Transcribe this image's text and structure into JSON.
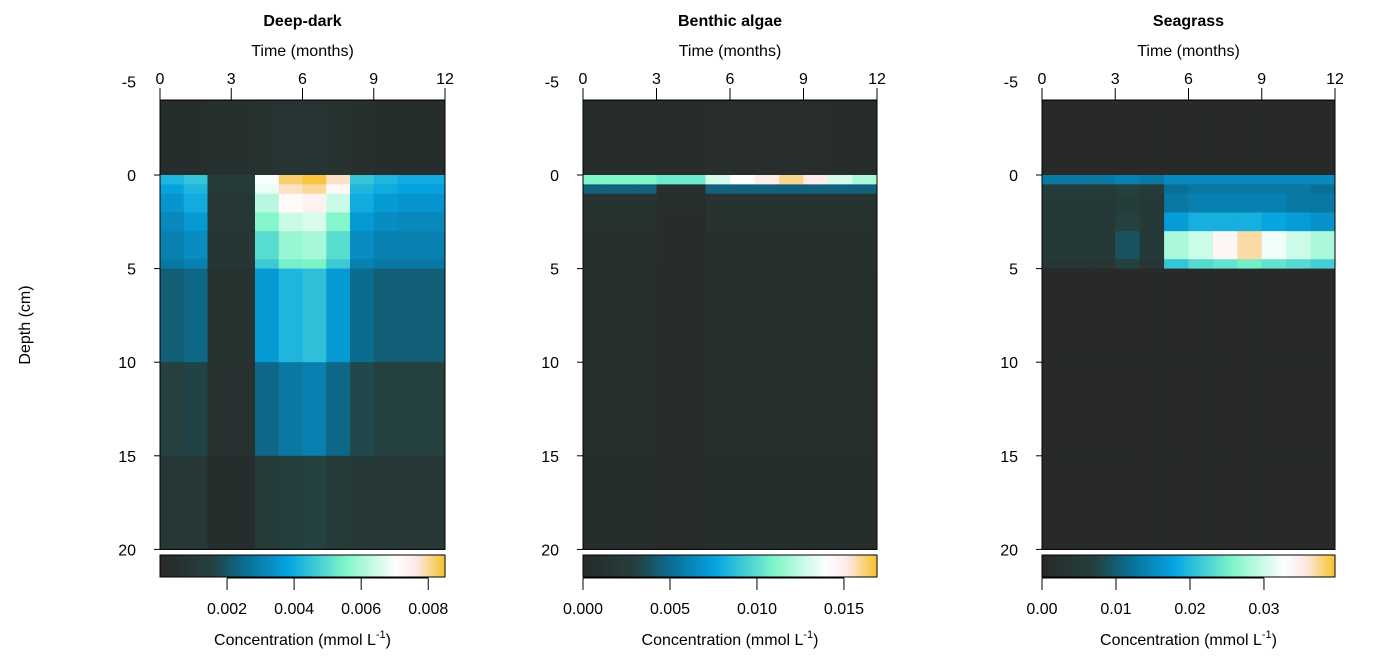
{
  "ylabel": "Depth (cm)",
  "chart_data": [
    {
      "type": "heatmap",
      "title": "Deep-dark",
      "xlabel": "Time (months)",
      "ylabel": "Depth (cm)",
      "xlim": [
        0,
        12
      ],
      "xticks": [
        0,
        3,
        6,
        9,
        12
      ],
      "ylim": [
        20,
        -5
      ],
      "yticks": [
        -5,
        0,
        5,
        10,
        15,
        20
      ],
      "x_edges": [
        0,
        1,
        2,
        3,
        4,
        5,
        6,
        7,
        8,
        9,
        10,
        11,
        12
      ],
      "y_edges": [
        -4,
        0,
        0.5,
        1,
        2,
        3,
        4.5,
        5,
        10,
        15,
        20
      ],
      "values": [
        [
          0.0003,
          0.0003,
          0.0004,
          0.0004,
          0.0006,
          0.0007,
          0.0007,
          0.0006,
          0.0004,
          0.0003,
          0.0003,
          0.0003
        ],
        [
          0.0042,
          0.0045,
          0.0012,
          0.0012,
          0.007,
          0.0082,
          0.0084,
          0.0078,
          0.0045,
          0.0042,
          0.004,
          0.004
        ],
        [
          0.0038,
          0.0042,
          0.0011,
          0.0011,
          0.0068,
          0.0078,
          0.008,
          0.0072,
          0.0042,
          0.004,
          0.0038,
          0.0038
        ],
        [
          0.0035,
          0.004,
          0.001,
          0.001,
          0.0062,
          0.0072,
          0.0074,
          0.0064,
          0.004,
          0.0036,
          0.0035,
          0.0035
        ],
        [
          0.0032,
          0.0036,
          0.0009,
          0.0009,
          0.0056,
          0.0064,
          0.0066,
          0.0056,
          0.0036,
          0.0033,
          0.0032,
          0.0032
        ],
        [
          0.003,
          0.0033,
          0.0008,
          0.0008,
          0.005,
          0.0058,
          0.006,
          0.005,
          0.0033,
          0.003,
          0.003,
          0.003
        ],
        [
          0.0028,
          0.003,
          0.0008,
          0.0008,
          0.0046,
          0.0054,
          0.0055,
          0.0046,
          0.003,
          0.0028,
          0.0028,
          0.0028
        ],
        [
          0.0022,
          0.0024,
          0.0006,
          0.0006,
          0.0036,
          0.0042,
          0.0044,
          0.0036,
          0.0025,
          0.0022,
          0.0022,
          0.0022
        ],
        [
          0.0015,
          0.0016,
          0.0005,
          0.0005,
          0.0024,
          0.0028,
          0.003,
          0.0024,
          0.0017,
          0.0015,
          0.0015,
          0.0015
        ],
        [
          0.0009,
          0.0009,
          0.0003,
          0.0003,
          0.0012,
          0.0014,
          0.0015,
          0.0012,
          0.001,
          0.0009,
          0.0009,
          0.0009
        ]
      ],
      "colorbar": {
        "label": "Concentration (mmol L",
        "label_sup": "-1",
        "label_end": ")",
        "range": [
          0,
          0.0085
        ],
        "ticks": [
          0.002,
          0.004,
          0.006,
          0.008
        ],
        "tick_labels": [
          "0.002",
          "0.004",
          "0.006",
          "0.008"
        ]
      }
    },
    {
      "type": "heatmap",
      "title": "Benthic algae",
      "xlabel": "Time (months)",
      "xlim": [
        0,
        12
      ],
      "xticks": [
        0,
        3,
        6,
        9,
        12
      ],
      "ylim": [
        20,
        -5
      ],
      "yticks": [
        -5,
        0,
        5,
        10,
        15,
        20
      ],
      "x_edges": [
        0,
        1,
        2,
        3,
        4,
        5,
        6,
        7,
        8,
        9,
        10,
        11,
        12
      ],
      "y_edges": [
        -4,
        0,
        0.5,
        1,
        2,
        3,
        4.5,
        5,
        10,
        15,
        20
      ],
      "values": [
        [
          0.0004,
          0.0004,
          0.0004,
          0.0004,
          0.0004,
          0.0005,
          0.0005,
          0.0005,
          0.0005,
          0.0005,
          0.0004,
          0.0004
        ],
        [
          0.011,
          0.011,
          0.011,
          0.0105,
          0.0105,
          0.013,
          0.014,
          0.015,
          0.016,
          0.015,
          0.013,
          0.012
        ],
        [
          0.0045,
          0.0045,
          0.0045,
          0.0008,
          0.0008,
          0.0045,
          0.0045,
          0.0045,
          0.0045,
          0.0045,
          0.0045,
          0.0045
        ],
        [
          0.0012,
          0.0012,
          0.0012,
          0.0005,
          0.0005,
          0.0012,
          0.0012,
          0.0012,
          0.0012,
          0.0012,
          0.0012,
          0.0012
        ],
        [
          0.001,
          0.001,
          0.001,
          0.0004,
          0.0004,
          0.001,
          0.001,
          0.001,
          0.001,
          0.001,
          0.001,
          0.001
        ],
        [
          0.0009,
          0.0009,
          0.0009,
          0.0004,
          0.0004,
          0.0009,
          0.0009,
          0.0009,
          0.0009,
          0.0009,
          0.0009,
          0.0009
        ],
        [
          0.0009,
          0.0009,
          0.0009,
          0.0004,
          0.0004,
          0.0009,
          0.0009,
          0.0009,
          0.0009,
          0.0009,
          0.0009,
          0.0009
        ],
        [
          0.0008,
          0.0008,
          0.0008,
          0.0004,
          0.0004,
          0.0008,
          0.0008,
          0.0008,
          0.0008,
          0.0008,
          0.0008,
          0.0008
        ],
        [
          0.0007,
          0.0007,
          0.0007,
          0.0004,
          0.0004,
          0.0007,
          0.0007,
          0.0007,
          0.0007,
          0.0007,
          0.0007,
          0.0007
        ],
        [
          0.0006,
          0.0006,
          0.0006,
          0.0003,
          0.0003,
          0.0006,
          0.0006,
          0.0006,
          0.0006,
          0.0006,
          0.0006,
          0.0006
        ]
      ],
      "colorbar": {
        "label": "Concentration (mmol L",
        "label_sup": "-1",
        "label_end": ")",
        "range": [
          0,
          0.0169
        ],
        "ticks": [
          0,
          0.005,
          0.01,
          0.015
        ],
        "tick_labels": [
          "0.000",
          "0.005",
          "0.010",
          "0.015"
        ]
      }
    },
    {
      "type": "heatmap",
      "title": "Seagrass",
      "xlabel": "Time (months)",
      "xlim": [
        0,
        12
      ],
      "xticks": [
        0,
        3,
        6,
        9,
        12
      ],
      "ylim": [
        20,
        -5
      ],
      "yticks": [
        -5,
        0,
        5,
        10,
        15,
        20
      ],
      "x_edges": [
        0,
        1,
        2,
        3,
        4,
        5,
        6,
        7,
        8,
        9,
        10,
        11,
        12
      ],
      "y_edges": [
        -4,
        0,
        0.5,
        1,
        2,
        3,
        4.5,
        5,
        10,
        15,
        20
      ],
      "values": [
        [
          0,
          0,
          0,
          0,
          0,
          0,
          0,
          0,
          0,
          0,
          0,
          0
        ],
        [
          0.013,
          0.013,
          0.013,
          0.014,
          0.013,
          0.015,
          0.015,
          0.015,
          0.015,
          0.015,
          0.015,
          0.015
        ],
        [
          0.006,
          0.006,
          0.006,
          0.007,
          0.006,
          0.012,
          0.013,
          0.013,
          0.013,
          0.013,
          0.013,
          0.012
        ],
        [
          0.005,
          0.005,
          0.005,
          0.006,
          0.005,
          0.013,
          0.014,
          0.014,
          0.014,
          0.014,
          0.013,
          0.013
        ],
        [
          0.005,
          0.005,
          0.005,
          0.007,
          0.005,
          0.017,
          0.019,
          0.019,
          0.019,
          0.018,
          0.017,
          0.016
        ],
        [
          0.005,
          0.005,
          0.005,
          0.009,
          0.005,
          0.028,
          0.03,
          0.034,
          0.037,
          0.032,
          0.03,
          0.028
        ],
        [
          0.004,
          0.004,
          0.004,
          0.007,
          0.004,
          0.021,
          0.023,
          0.024,
          0.025,
          0.024,
          0.023,
          0.022
        ],
        [
          0,
          0,
          0,
          0,
          0,
          0,
          0,
          0,
          0,
          0,
          0,
          0
        ],
        [
          0,
          0,
          0,
          0,
          0,
          0,
          0,
          0,
          0,
          0,
          0,
          0
        ],
        [
          0,
          0,
          0,
          0,
          0,
          0,
          0,
          0,
          0,
          0,
          0,
          0
        ]
      ],
      "colorbar": {
        "label": "Concentration (mmol L",
        "label_sup": "-1",
        "label_end": ")",
        "range": [
          0,
          0.0396
        ],
        "ticks": [
          0,
          0.01,
          0.02,
          0.03
        ],
        "tick_labels": [
          "0.00",
          "0.01",
          "0.02",
          "0.03"
        ]
      }
    }
  ],
  "colormap": [
    [
      0,
      "#272a28"
    ],
    [
      0.18,
      "#24403f"
    ],
    [
      0.3,
      "#0a6e94"
    ],
    [
      0.45,
      "#05a3e2"
    ],
    [
      0.65,
      "#7ff5c8"
    ],
    [
      0.83,
      "#ffffff"
    ],
    [
      0.9,
      "#fde8e6"
    ],
    [
      1,
      "#f5c22a"
    ]
  ]
}
